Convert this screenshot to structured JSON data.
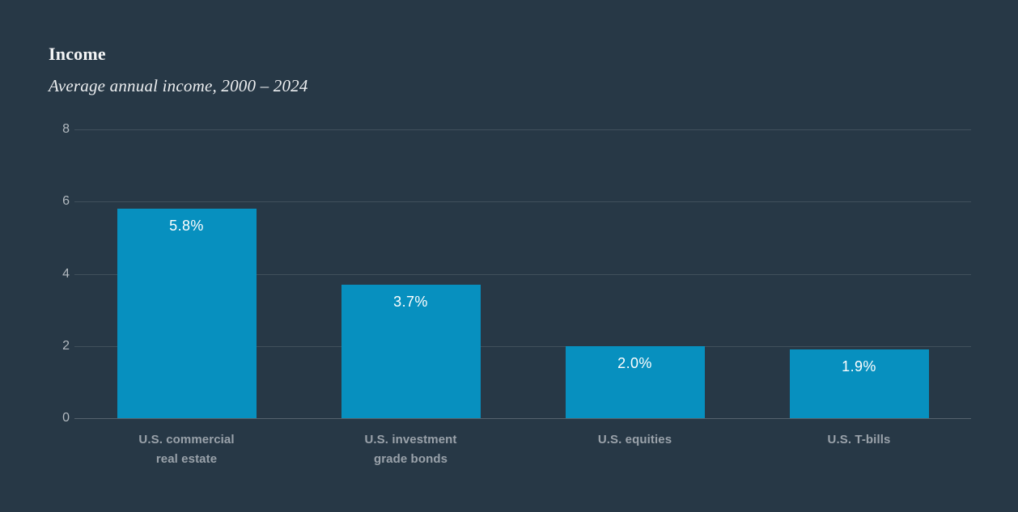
{
  "page": {
    "background_color": "#273846"
  },
  "header": {
    "title": "Income",
    "subtitle": "Average annual income, 2000 – 2024"
  },
  "chart_data": {
    "type": "bar",
    "title": "Income",
    "subtitle": "Average annual income, 2000 – 2024",
    "categories": [
      "U.S. commercial real estate",
      "U.S. investment grade bonds",
      "U.S. equities",
      "U.S. T-bills"
    ],
    "category_label_lines": [
      [
        "U.S. commercial",
        "real estate"
      ],
      [
        "U.S. investment",
        "grade bonds"
      ],
      [
        "U.S. equities"
      ],
      [
        "U.S. T-bills"
      ]
    ],
    "values": [
      5.8,
      3.7,
      2.0,
      1.9
    ],
    "value_labels": [
      "5.8%",
      "3.7%",
      "2.0%",
      "1.9%"
    ],
    "xlabel": "",
    "ylabel": "",
    "ylim": [
      0,
      8
    ],
    "yticks": [
      0,
      2,
      4,
      6,
      8
    ],
    "grid": true,
    "legend": "none",
    "bar_color": "#0790bf",
    "gridline_color": "#41505c",
    "zero_line_color": "#55636e",
    "tick_label_color": "#b3bac0",
    "category_label_color": "#9aa2aa",
    "value_label_color": "#ffffff",
    "background_color": "#273846"
  }
}
